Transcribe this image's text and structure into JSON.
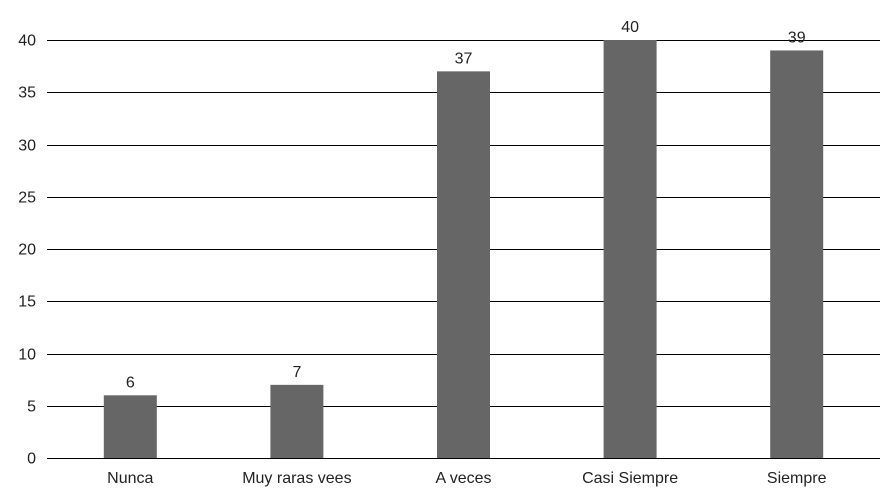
{
  "chart_data": {
    "type": "bar",
    "categories": [
      "Nunca",
      "Muy raras vees",
      "A veces",
      "Casi Siempre",
      "Siempre"
    ],
    "values": [
      6,
      7,
      37,
      40,
      39
    ],
    "ylim": [
      0,
      40
    ],
    "yticks": [
      "0",
      "5",
      "10",
      "15",
      "20",
      "25",
      "30",
      "35",
      "40"
    ],
    "grid": true,
    "bar_color": "#666666",
    "grid_color": "#000000"
  }
}
